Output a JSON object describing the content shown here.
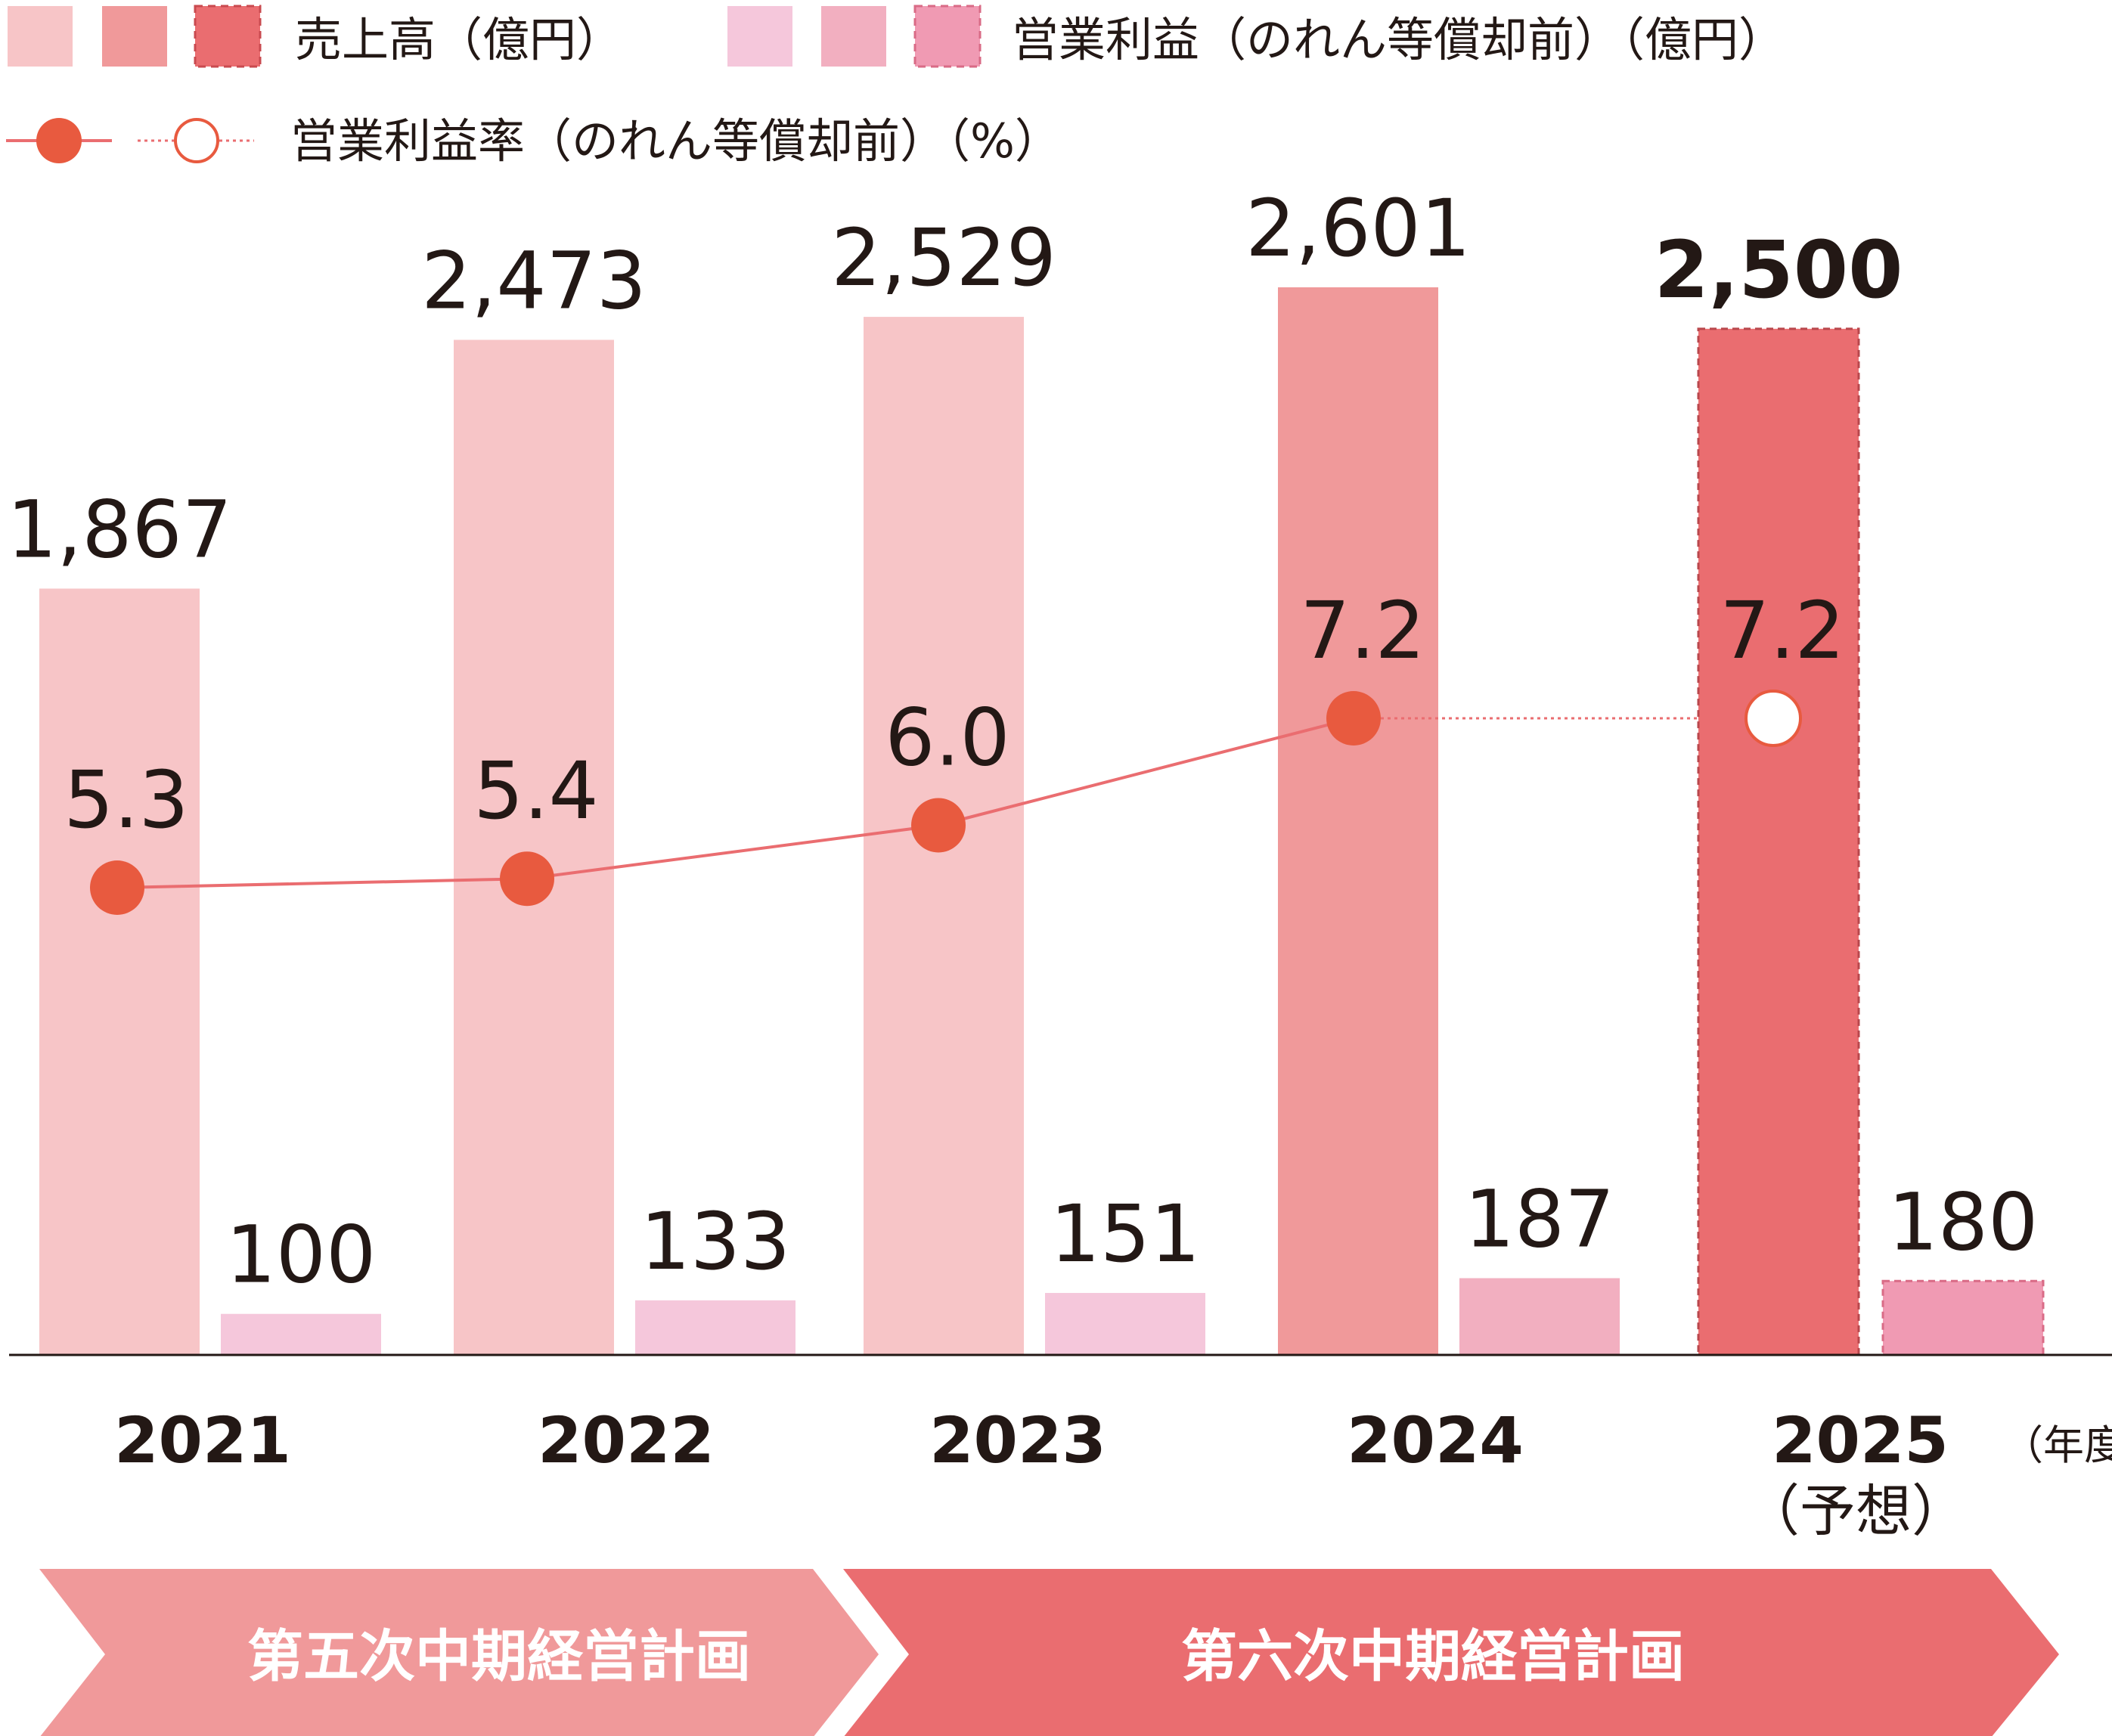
{
  "legend": {
    "sales_label": "売上高（億円）",
    "profit_label": "営業利益（のれん等償却前）（億円）",
    "margin_label": "営業利益率（のれん等償却前）（%）",
    "sales_swatches": [
      "#F7C5C7",
      "#F0999A",
      "#EA6D70"
    ],
    "profit_swatches": [
      "#F5C7DB",
      "#F2AFC0",
      "#F09AB3"
    ]
  },
  "chart_data": {
    "type": "bar",
    "categories": [
      "2021",
      "2022",
      "2023",
      "2024",
      "2025"
    ],
    "category_sublabels": [
      "",
      "",
      "",
      "",
      "（予想）"
    ],
    "unit_label": "（年度）",
    "series": [
      {
        "name": "売上高（億円）",
        "type": "bar",
        "values": [
          1867,
          2473,
          2529,
          2601,
          2500
        ],
        "labels": [
          "1,867",
          "2,473",
          "2,529",
          "2,601",
          "2,500"
        ],
        "colors": [
          "#F7C5C7",
          "#F7C5C7",
          "#F7C5C7",
          "#F0999A",
          "#EA6D70"
        ],
        "forecast": [
          false,
          false,
          false,
          false,
          true
        ]
      },
      {
        "name": "営業利益（のれん等償却前）（億円）",
        "type": "bar",
        "values": [
          100,
          133,
          151,
          187,
          180
        ],
        "labels": [
          "100",
          "133",
          "151",
          "187",
          "180"
        ],
        "colors": [
          "#F5C7DB",
          "#F5C7DB",
          "#F5C7DB",
          "#F2AFC0",
          "#F09AB3"
        ],
        "forecast": [
          false,
          false,
          false,
          false,
          true
        ]
      },
      {
        "name": "営業利益率（のれん等償却前）（%）",
        "type": "line",
        "values": [
          5.3,
          5.4,
          6.0,
          7.2,
          7.2
        ],
        "labels": [
          "5.3",
          "5.4",
          "6.0",
          "7.2",
          "7.2"
        ],
        "forecast": [
          false,
          false,
          false,
          false,
          true
        ],
        "color": "#E85A3F",
        "line_color": "#EA6D70"
      }
    ]
  },
  "phases": [
    {
      "label": "第五次中期経営計画",
      "color": "#F0999A"
    },
    {
      "label": "第六次中期経営計画",
      "color": "#EA6D70"
    }
  ]
}
